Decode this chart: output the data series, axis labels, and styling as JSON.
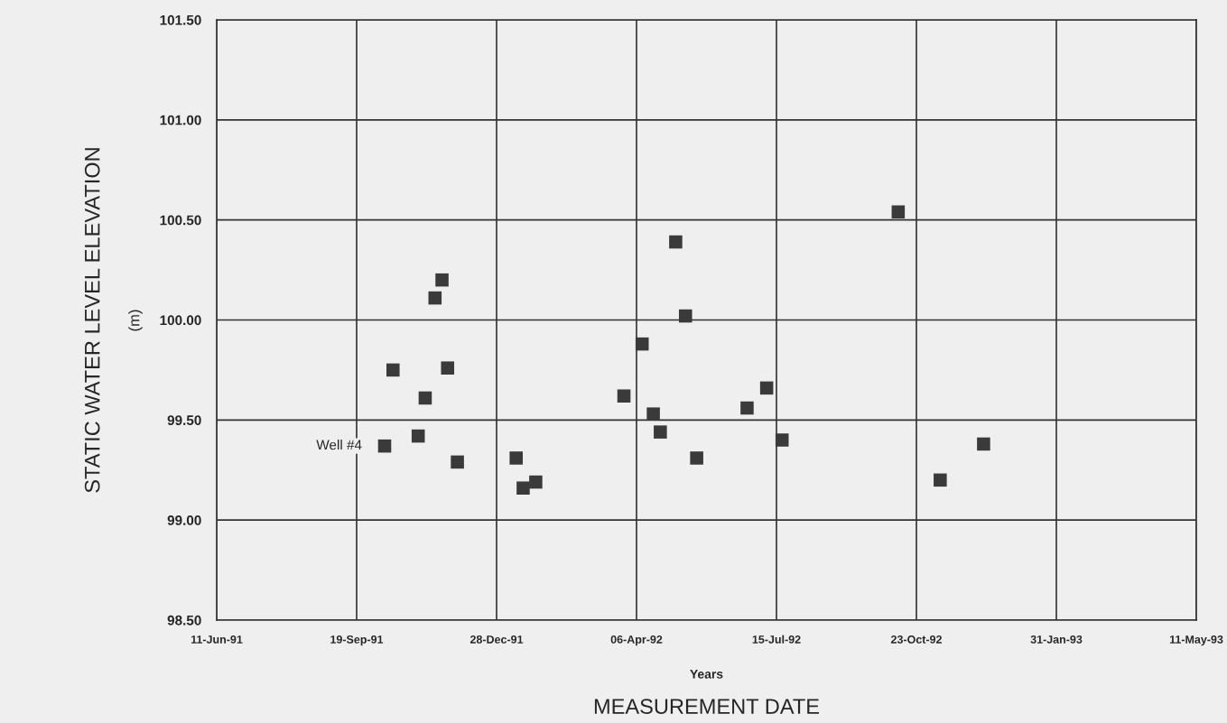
{
  "chart_data": {
    "type": "scatter",
    "xlabel": "MEASUREMENT DATE",
    "ylabel": "STATIC WATER LEVEL ELEVATION",
    "annotations": [
      {
        "text": "Well #4",
        "x": "1991-10-09",
        "y": 99.37
      },
      "Years",
      "(m)"
    ],
    "x": [
      "1991-10-09",
      "1991-10-15",
      "1991-11-02",
      "1991-11-07",
      "1991-11-14",
      "1991-11-19",
      "1991-11-23",
      "1991-11-30",
      "1992-01-11",
      "1992-01-16",
      "1992-01-25",
      "1992-03-28",
      "1992-04-10",
      "1992-04-18",
      "1992-04-23",
      "1992-05-04",
      "1992-05-11",
      "1992-05-19",
      "1992-06-24",
      "1992-07-08",
      "1992-07-19",
      "1992-10-10",
      "1992-11-09",
      "1992-12-10"
    ],
    "series": [
      {
        "color": "#3a3a3a",
        "values": [
          99.37,
          99.75,
          99.42,
          99.61,
          100.11,
          100.2,
          99.76,
          99.29,
          99.31,
          99.16,
          99.19,
          99.62,
          99.88,
          99.53,
          99.44,
          100.39,
          100.02,
          99.31,
          99.56,
          99.66,
          99.4,
          100.54,
          99.2,
          99.38
        ]
      }
    ],
    "marker": "square",
    "grid": true,
    "xlim": [
      "1991-06-11",
      "1993-05-11"
    ],
    "xticks": [
      {
        "value": "1991-06-11",
        "label": "11-Jun-91"
      },
      {
        "value": "1991-09-19",
        "label": "19-Sep-91"
      },
      {
        "value": "1991-12-28",
        "label": "28-Dec-91"
      },
      {
        "value": "1992-04-06",
        "label": "06-Apr-92"
      },
      {
        "value": "1992-07-15",
        "label": "15-Jul-92"
      },
      {
        "value": "1992-10-23",
        "label": "23-Oct-92"
      },
      {
        "value": "1993-01-31",
        "label": "31-Jan-93"
      },
      {
        "value": "1993-05-11",
        "label": "11-May-93"
      }
    ],
    "ylim": [
      98.5,
      101.5
    ],
    "yticks": [
      {
        "value": 98.5,
        "label": "98.50"
      },
      {
        "value": 99.0,
        "label": "99.00"
      },
      {
        "value": 99.5,
        "label": "99.50"
      },
      {
        "value": 100.0,
        "label": "100.00"
      },
      {
        "value": 100.5,
        "label": "100.50"
      },
      {
        "value": 101.0,
        "label": "101.00"
      },
      {
        "value": 101.5,
        "label": "101.50"
      }
    ]
  }
}
